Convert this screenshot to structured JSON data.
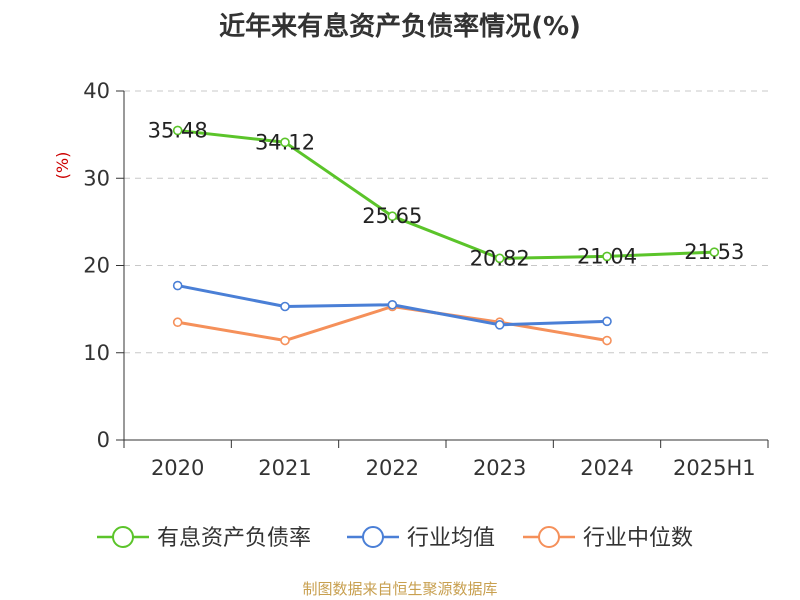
{
  "title": "近年来有息资产负债率情况(%)",
  "source": "制图数据来自恒生聚源数据库",
  "chart_data": {
    "type": "line",
    "title": "近年来有息资产负债率情况(%)",
    "ylabel": "(%)",
    "categories": [
      "2020",
      "2021",
      "2022",
      "2023",
      "2024",
      "2025H1"
    ],
    "ylim": [
      0,
      40
    ],
    "yticks": [
      0,
      10,
      20,
      30,
      40
    ],
    "grid": true,
    "legend_position": "bottom",
    "series": [
      {
        "name": "有息资产负债率",
        "color": "#5bc42a",
        "values": [
          35.48,
          34.12,
          25.65,
          20.82,
          21.04,
          21.53
        ],
        "labels": [
          "35.48",
          "34.12",
          "25.65",
          "20.82",
          "21.04",
          "21.53"
        ]
      },
      {
        "name": "行业均值",
        "color": "#4a7fd6",
        "values": [
          17.7,
          15.3,
          15.5,
          13.2,
          13.6,
          null
        ]
      },
      {
        "name": "行业中位数",
        "color": "#f5905a",
        "values": [
          13.5,
          11.4,
          15.3,
          13.5,
          11.4,
          null
        ]
      }
    ]
  }
}
